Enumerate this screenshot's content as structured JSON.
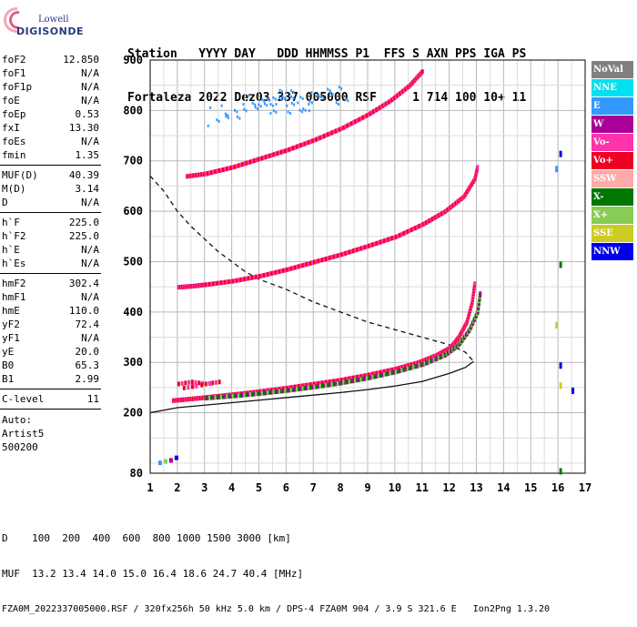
{
  "logo": {
    "line1": "Lowell",
    "line2": "DIGISONDE"
  },
  "header": {
    "line1": "Station   YYYY DAY   DDD HHMMSS P1  FFS S AXN PPS IGA PS",
    "line2": "Fortaleza 2022 Dez03 337 005000 RSF     1 714 100 10+ 11"
  },
  "params": {
    "group1": [
      {
        "name": "foF2",
        "value": "12.850"
      },
      {
        "name": "foF1",
        "value": "N/A"
      },
      {
        "name": "foF1p",
        "value": "N/A"
      },
      {
        "name": "foE",
        "value": "N/A"
      },
      {
        "name": "foEp",
        "value": "0.53"
      },
      {
        "name": "fxI",
        "value": "13.30"
      },
      {
        "name": "foEs",
        "value": "N/A"
      },
      {
        "name": "fmin",
        "value": "1.35"
      }
    ],
    "group2": [
      {
        "name": "MUF(D)",
        "value": "40.39"
      },
      {
        "name": "M(D)",
        "value": "3.14"
      },
      {
        "name": "D",
        "value": "N/A"
      }
    ],
    "group3": [
      {
        "name": "h`F",
        "value": "225.0"
      },
      {
        "name": "h`F2",
        "value": "225.0"
      },
      {
        "name": "h`E",
        "value": "N/A"
      },
      {
        "name": "h`Es",
        "value": "N/A"
      }
    ],
    "group4": [
      {
        "name": "hmF2",
        "value": "302.4"
      },
      {
        "name": "hmF1",
        "value": "N/A"
      },
      {
        "name": "hmE",
        "value": "110.0"
      },
      {
        "name": "yF2",
        "value": "72.4"
      },
      {
        "name": "yF1",
        "value": "N/A"
      },
      {
        "name": "yE",
        "value": "20.0"
      },
      {
        "name": "B0",
        "value": "65.3"
      },
      {
        "name": "B1",
        "value": "2.99"
      }
    ],
    "group5": [
      {
        "name": "C-level",
        "value": "11"
      }
    ],
    "auto": [
      "Auto:",
      "Artist5",
      "500200"
    ]
  },
  "legend": [
    {
      "label": "NoVal",
      "color": "#808080"
    },
    {
      "label": "NNE",
      "color": "#00e0f0"
    },
    {
      "label": "E",
      "color": "#3399ff"
    },
    {
      "label": "W",
      "color": "#aa0099"
    },
    {
      "label": "Vo-",
      "color": "#ff33aa"
    },
    {
      "label": "Vo+",
      "color": "#ee0022"
    },
    {
      "label": "SSW",
      "color": "#ffaaaa"
    },
    {
      "label": "X-",
      "color": "#007700"
    },
    {
      "label": "X+",
      "color": "#88cc55"
    },
    {
      "label": "SSE",
      "color": "#cccc22"
    },
    {
      "label": "NNW",
      "color": "#0000ee"
    }
  ],
  "footer": {
    "line1": "D    100  200  400  600  800 1000 1500 3000 [km]",
    "line2": "MUF  13.2 13.4 14.0 15.0 16.4 18.6 24.7 40.4 [MHz]",
    "line3": "FZA0M_2022337005000.RSF / 320fx256h 50 kHz 5.0 km / DPS-4 FZA0M 904 / 3.9 S 321.6 E   Ion2Png 1.3.20"
  },
  "chart_data": {
    "type": "scatter",
    "xlim": [
      1,
      17
    ],
    "ylim": [
      80,
      900
    ],
    "xticks": [
      1,
      2,
      3,
      4,
      5,
      6,
      7,
      8,
      9,
      10,
      11,
      12,
      13,
      14,
      15,
      16,
      17
    ],
    "yticks": [
      80,
      200,
      300,
      400,
      500,
      600,
      700,
      800,
      900
    ],
    "grid": true,
    "traces": [
      {
        "name": "o-trace F2",
        "x": [
          1.8,
          2.2,
          2.8,
          3.5,
          4.2,
          5,
          6,
          7,
          8,
          9,
          10,
          10.8,
          11.5,
          12,
          12.3,
          12.6,
          12.8,
          12.9
        ],
        "y": [
          225,
          227,
          230,
          234,
          238,
          243,
          250,
          258,
          266,
          276,
          288,
          300,
          315,
          330,
          350,
          380,
          420,
          460
        ]
      },
      {
        "name": "x-trace F2",
        "x": [
          3,
          4,
          5,
          6,
          7,
          8,
          9,
          10,
          11,
          11.8,
          12.3,
          12.7,
          13,
          13.1
        ],
        "y": [
          230,
          234,
          239,
          245,
          252,
          260,
          270,
          282,
          297,
          315,
          335,
          365,
          400,
          440
        ]
      },
      {
        "name": "2nd hop",
        "x": [
          2,
          2.5,
          3,
          4,
          5,
          6,
          7,
          8,
          9,
          10,
          11,
          11.8,
          12.5,
          12.9,
          13
        ],
        "y": [
          450,
          452,
          455,
          462,
          472,
          485,
          500,
          515,
          532,
          550,
          575,
          600,
          630,
          665,
          690
        ]
      },
      {
        "name": "3rd hop",
        "x": [
          2.3,
          3,
          4,
          5,
          6,
          7,
          8,
          9,
          9.8,
          10.5,
          11
        ],
        "y": [
          670,
          675,
          688,
          705,
          722,
          742,
          765,
          793,
          820,
          850,
          880
        ]
      },
      {
        "name": "Es cluster",
        "x": [
          2,
          2.5,
          3,
          3.5,
          2.2,
          2.8
        ],
        "y": [
          258,
          262,
          258,
          262,
          250,
          255
        ]
      },
      {
        "name": "scatter E",
        "x": [
          3.5,
          4,
          4.5,
          5,
          5.5,
          6,
          6.5,
          7,
          7.5,
          8,
          5.2,
          5.8,
          6.4
        ],
        "y": [
          790,
          800,
          805,
          815,
          825,
          830,
          820,
          815,
          830,
          840,
          808,
          812,
          818
        ]
      }
    ],
    "profile_solid": {
      "x": [
        1,
        2,
        3,
        4,
        5,
        6,
        7,
        8,
        9,
        10,
        11,
        12,
        12.6,
        12.9
      ],
      "y": [
        200,
        210,
        215,
        220,
        225,
        230,
        235,
        240,
        246,
        253,
        262,
        278,
        290,
        302
      ]
    },
    "profile_dashed": {
      "x": [
        1,
        1.5,
        2,
        2.5,
        3,
        3.5,
        4,
        4.5,
        5,
        6,
        7,
        8,
        9,
        10,
        11,
        12,
        12.6,
        12.9
      ],
      "y": [
        670,
        640,
        600,
        570,
        545,
        520,
        500,
        480,
        465,
        445,
        420,
        400,
        380,
        365,
        350,
        335,
        320,
        302
      ]
    }
  }
}
